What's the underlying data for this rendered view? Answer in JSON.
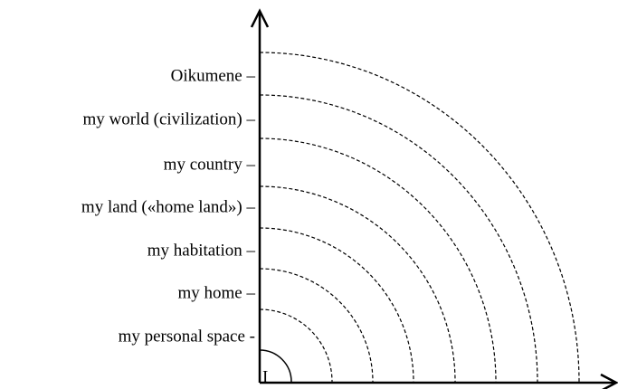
{
  "diagram": {
    "origin_label": "I",
    "levels": [
      "my personal space -",
      "my home –",
      "my habitation  –",
      "my land («home land») –",
      "my country –",
      "my world (civilization) –",
      "Oikumene –"
    ]
  }
}
